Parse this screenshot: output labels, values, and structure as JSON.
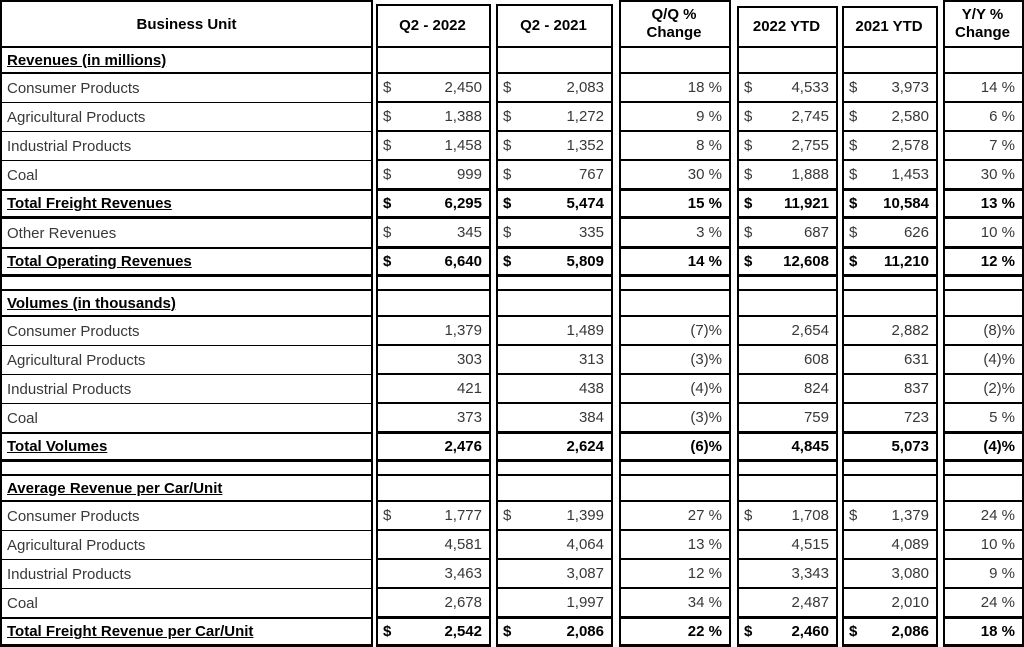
{
  "colors": {
    "border": "#000000",
    "text": "#383838",
    "emphasis_text": "#000000",
    "background": "#ffffff"
  },
  "table": {
    "header": {
      "cells": [
        {
          "l1": "Business Unit",
          "l2": ""
        },
        {
          "l1": "Q2 - 2022",
          "l2": ""
        },
        {
          "l1": "Q2 - 2021",
          "l2": ""
        },
        {
          "l1": "Q/Q %",
          "l2": "Change"
        },
        {
          "l1": "2022 YTD",
          "l2": ""
        },
        {
          "l1": "2021 YTD",
          "l2": ""
        },
        {
          "l1": "Y/Y %",
          "l2": "Change"
        }
      ]
    },
    "sections": [
      {
        "title": "Revenues (in millions)",
        "spacer_after": true,
        "rows": [
          {
            "label": "Consumer Products",
            "total": false,
            "cells": [
              {
                "d": "$",
                "v": "2,450"
              },
              {
                "d": "$",
                "v": "2,083"
              },
              {
                "d": "",
                "v": "18 %"
              },
              {
                "d": "$",
                "v": "4,533"
              },
              {
                "d": "$",
                "v": "3,973"
              },
              {
                "d": "",
                "v": "14 %"
              }
            ]
          },
          {
            "label": "Agricultural Products",
            "total": false,
            "cells": [
              {
                "d": "$",
                "v": "1,388"
              },
              {
                "d": "$",
                "v": "1,272"
              },
              {
                "d": "",
                "v": "9 %"
              },
              {
                "d": "$",
                "v": "2,745"
              },
              {
                "d": "$",
                "v": "2,580"
              },
              {
                "d": "",
                "v": "6 %"
              }
            ]
          },
          {
            "label": "Industrial Products",
            "total": false,
            "cells": [
              {
                "d": "$",
                "v": "1,458"
              },
              {
                "d": "$",
                "v": "1,352"
              },
              {
                "d": "",
                "v": "8 %"
              },
              {
                "d": "$",
                "v": "2,755"
              },
              {
                "d": "$",
                "v": "2,578"
              },
              {
                "d": "",
                "v": "7 %"
              }
            ]
          },
          {
            "label": "Coal",
            "total": false,
            "cells": [
              {
                "d": "$",
                "v": "999"
              },
              {
                "d": "$",
                "v": "767"
              },
              {
                "d": "",
                "v": "30 %"
              },
              {
                "d": "$",
                "v": "1,888"
              },
              {
                "d": "$",
                "v": "1,453"
              },
              {
                "d": "",
                "v": "30 %"
              }
            ]
          },
          {
            "label": "Total Freight Revenues",
            "total": true,
            "cells": [
              {
                "d": "$",
                "v": "6,295"
              },
              {
                "d": "$",
                "v": "5,474"
              },
              {
                "d": "",
                "v": "15 %"
              },
              {
                "d": "$",
                "v": "11,921"
              },
              {
                "d": "$",
                "v": "10,584"
              },
              {
                "d": "",
                "v": "13 %"
              }
            ]
          },
          {
            "label": "Other Revenues",
            "total": false,
            "cells": [
              {
                "d": "$",
                "v": "345"
              },
              {
                "d": "$",
                "v": "335"
              },
              {
                "d": "",
                "v": "3 %"
              },
              {
                "d": "$",
                "v": "687"
              },
              {
                "d": "$",
                "v": "626"
              },
              {
                "d": "",
                "v": "10 %"
              }
            ]
          },
          {
            "label": "Total Operating Revenues",
            "total": true,
            "cells": [
              {
                "d": "$",
                "v": "6,640"
              },
              {
                "d": "$",
                "v": "5,809"
              },
              {
                "d": "",
                "v": "14 %"
              },
              {
                "d": "$",
                "v": "12,608"
              },
              {
                "d": "$",
                "v": "11,210"
              },
              {
                "d": "",
                "v": "12 %"
              }
            ]
          }
        ]
      },
      {
        "title": "Volumes (in thousands)",
        "spacer_after": true,
        "rows": [
          {
            "label": "Consumer Products",
            "total": false,
            "cells": [
              {
                "d": "",
                "v": "1,379"
              },
              {
                "d": "",
                "v": "1,489"
              },
              {
                "d": "",
                "v": "(7)%"
              },
              {
                "d": "",
                "v": "2,654"
              },
              {
                "d": "",
                "v": "2,882"
              },
              {
                "d": "",
                "v": "(8)%"
              }
            ]
          },
          {
            "label": "Agricultural Products",
            "total": false,
            "cells": [
              {
                "d": "",
                "v": "303"
              },
              {
                "d": "",
                "v": "313"
              },
              {
                "d": "",
                "v": "(3)%"
              },
              {
                "d": "",
                "v": "608"
              },
              {
                "d": "",
                "v": "631"
              },
              {
                "d": "",
                "v": "(4)%"
              }
            ]
          },
          {
            "label": "Industrial Products",
            "total": false,
            "cells": [
              {
                "d": "",
                "v": "421"
              },
              {
                "d": "",
                "v": "438"
              },
              {
                "d": "",
                "v": "(4)%"
              },
              {
                "d": "",
                "v": "824"
              },
              {
                "d": "",
                "v": "837"
              },
              {
                "d": "",
                "v": "(2)%"
              }
            ]
          },
          {
            "label": "Coal",
            "total": false,
            "cells": [
              {
                "d": "",
                "v": "373"
              },
              {
                "d": "",
                "v": "384"
              },
              {
                "d": "",
                "v": "(3)%"
              },
              {
                "d": "",
                "v": "759"
              },
              {
                "d": "",
                "v": "723"
              },
              {
                "d": "",
                "v": "5 %"
              }
            ]
          },
          {
            "label": "Total Volumes",
            "total": true,
            "cells": [
              {
                "d": "",
                "v": "2,476"
              },
              {
                "d": "",
                "v": "2,624"
              },
              {
                "d": "",
                "v": "(6)%"
              },
              {
                "d": "",
                "v": "4,845"
              },
              {
                "d": "",
                "v": "5,073"
              },
              {
                "d": "",
                "v": "(4)%"
              }
            ]
          }
        ]
      },
      {
        "title": "Average Revenue per Car/Unit",
        "spacer_after": false,
        "rows": [
          {
            "label": "Consumer Products",
            "total": false,
            "cells": [
              {
                "d": "$",
                "v": "1,777"
              },
              {
                "d": "$",
                "v": "1,399"
              },
              {
                "d": "",
                "v": "27 %"
              },
              {
                "d": "$",
                "v": "1,708"
              },
              {
                "d": "$",
                "v": "1,379"
              },
              {
                "d": "",
                "v": "24 %"
              }
            ]
          },
          {
            "label": "Agricultural Products",
            "total": false,
            "cells": [
              {
                "d": "",
                "v": "4,581"
              },
              {
                "d": "",
                "v": "4,064"
              },
              {
                "d": "",
                "v": "13 %"
              },
              {
                "d": "",
                "v": "4,515"
              },
              {
                "d": "",
                "v": "4,089"
              },
              {
                "d": "",
                "v": "10 %"
              }
            ]
          },
          {
            "label": "Industrial Products",
            "total": false,
            "cells": [
              {
                "d": "",
                "v": "3,463"
              },
              {
                "d": "",
                "v": "3,087"
              },
              {
                "d": "",
                "v": "12 %"
              },
              {
                "d": "",
                "v": "3,343"
              },
              {
                "d": "",
                "v": "3,080"
              },
              {
                "d": "",
                "v": "9 %"
              }
            ]
          },
          {
            "label": "Coal",
            "total": false,
            "cells": [
              {
                "d": "",
                "v": "2,678"
              },
              {
                "d": "",
                "v": "1,997"
              },
              {
                "d": "",
                "v": "34 %"
              },
              {
                "d": "",
                "v": "2,487"
              },
              {
                "d": "",
                "v": "2,010"
              },
              {
                "d": "",
                "v": "24 %"
              }
            ]
          },
          {
            "label": "Total Freight Revenue per Car/Unit",
            "total": true,
            "cells": [
              {
                "d": "$",
                "v": "2,542"
              },
              {
                "d": "$",
                "v": "2,086"
              },
              {
                "d": "",
                "v": "22 %"
              },
              {
                "d": "$",
                "v": "2,460"
              },
              {
                "d": "$",
                "v": "2,086"
              },
              {
                "d": "",
                "v": "18 %"
              }
            ]
          }
        ]
      }
    ]
  }
}
